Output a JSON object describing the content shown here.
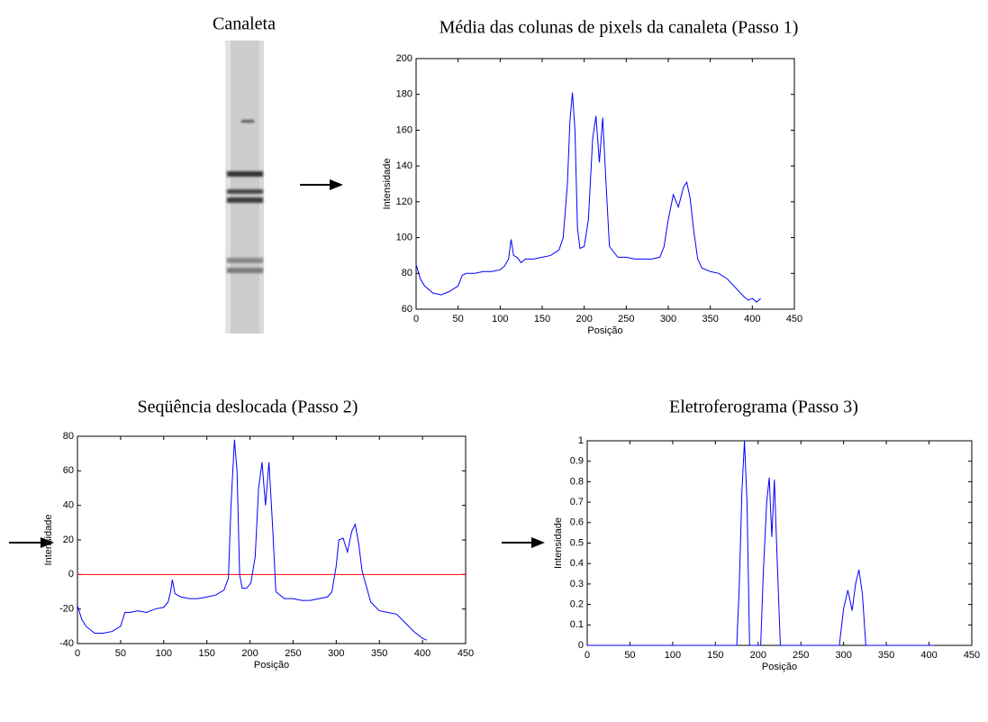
{
  "image": {
    "title": "Canaleta"
  },
  "chart_data": [
    {
      "type": "line",
      "title": "Média das colunas de pixels da canaleta (Passo 1)",
      "xlabel": "Posição",
      "ylabel": "Intensidade",
      "color": "#0000ff",
      "x": [
        0,
        5,
        10,
        20,
        30,
        40,
        50,
        55,
        60,
        70,
        80,
        90,
        100,
        105,
        110,
        113,
        116,
        120,
        125,
        130,
        140,
        150,
        160,
        170,
        175,
        180,
        183,
        186,
        189,
        192,
        195,
        200,
        205,
        210,
        214,
        218,
        222,
        226,
        230,
        240,
        250,
        260,
        270,
        280,
        290,
        295,
        300,
        306,
        312,
        318,
        322,
        326,
        330,
        335,
        340,
        350,
        360,
        370,
        380,
        390,
        395,
        400,
        405,
        410
      ],
      "values": [
        85,
        77,
        73,
        69,
        68,
        70,
        73,
        79,
        80,
        80,
        81,
        81,
        82,
        84,
        88,
        99,
        90,
        89,
        86,
        88,
        88,
        89,
        90,
        93,
        100,
        130,
        165,
        181,
        160,
        105,
        94,
        95,
        110,
        155,
        168,
        142,
        167,
        130,
        95,
        89,
        89,
        88,
        88,
        88,
        89,
        95,
        110,
        124,
        117,
        128,
        131,
        122,
        105,
        88,
        83,
        81,
        80,
        77,
        72,
        67,
        65,
        66,
        64,
        66
      ],
      "xlim": [
        0,
        450
      ],
      "xticks": [
        0,
        50,
        100,
        150,
        200,
        250,
        300,
        350,
        400,
        450
      ],
      "ylim": [
        60,
        200
      ],
      "yticks": [
        60,
        80,
        100,
        120,
        140,
        160,
        180,
        200
      ]
    },
    {
      "type": "line",
      "title": "Seqüência deslocada (Passo 2)",
      "xlabel": "Posição",
      "ylabel": "Intensidade",
      "color": "#0000ff",
      "x": [
        0,
        5,
        10,
        20,
        30,
        40,
        50,
        55,
        60,
        70,
        80,
        90,
        100,
        105,
        108,
        110,
        113,
        116,
        120,
        130,
        140,
        150,
        160,
        170,
        175,
        178,
        182,
        185,
        188,
        191,
        196,
        201,
        206,
        210,
        214,
        218,
        222,
        226,
        230,
        240,
        250,
        260,
        270,
        280,
        290,
        295,
        300,
        303,
        308,
        313,
        318,
        322,
        326,
        330,
        340,
        350,
        360,
        370,
        380,
        390,
        395,
        400,
        405
      ],
      "values": [
        -18,
        -26,
        -30,
        -34,
        -34,
        -33,
        -30,
        -22,
        -22,
        -21,
        -22,
        -20,
        -19,
        -16,
        -10,
        -3,
        -11,
        -12,
        -13,
        -14,
        -14,
        -13,
        -12,
        -9,
        -2,
        40,
        78,
        60,
        0,
        -8,
        -8,
        -5,
        10,
        50,
        65,
        40,
        65,
        30,
        -10,
        -14,
        -14,
        -15,
        -15,
        -14,
        -13,
        -10,
        5,
        20,
        21,
        13,
        25,
        29,
        18,
        2,
        -16,
        -21,
        -22,
        -23,
        -28,
        -33,
        -35,
        -37,
        -38
      ],
      "reference_line": {
        "value": 0,
        "color": "#ff0000"
      },
      "xlim": [
        0,
        450
      ],
      "xticks": [
        0,
        50,
        100,
        150,
        200,
        250,
        300,
        350,
        400,
        450
      ],
      "ylim": [
        -40,
        80
      ],
      "yticks": [
        -40,
        -20,
        0,
        20,
        40,
        60,
        80
      ]
    },
    {
      "type": "line",
      "title": "Eletroferograma (Passo 3)",
      "xlabel": "Posição",
      "ylabel": "Intensidade",
      "color": "#0000ff",
      "x": [
        0,
        175,
        178,
        181,
        184,
        187,
        190,
        203,
        206,
        210,
        213,
        216,
        219,
        222,
        226,
        295,
        300,
        305,
        310,
        314,
        318,
        322,
        326,
        405
      ],
      "values": [
        0,
        0,
        0.3,
        0.75,
        1,
        0.7,
        0,
        0,
        0.35,
        0.7,
        0.82,
        0.53,
        0.81,
        0.45,
        0,
        0,
        0.18,
        0.27,
        0.17,
        0.3,
        0.37,
        0.25,
        0,
        0
      ],
      "xlim": [
        0,
        450
      ],
      "xticks": [
        0,
        50,
        100,
        150,
        200,
        250,
        300,
        350,
        400,
        450
      ],
      "ylim": [
        0,
        1
      ],
      "yticks": [
        0,
        0.1,
        0.2,
        0.3,
        0.4,
        0.5,
        0.6,
        0.7,
        0.8,
        0.9,
        1
      ]
    }
  ]
}
